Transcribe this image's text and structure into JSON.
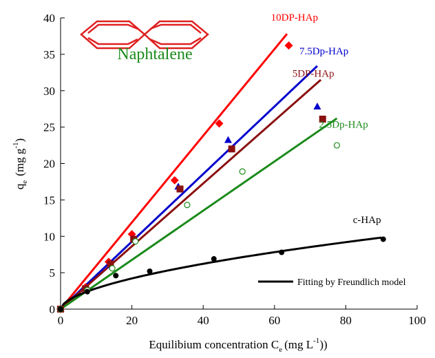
{
  "chart_data": {
    "type": "scatter",
    "x_axis": {
      "label_main": "Equilibium concentration C",
      "label_sub": "e",
      "label_tail": "(mg L",
      "label_sup": "-1",
      "label_end": "))",
      "range": [
        0,
        100
      ],
      "ticks": [
        0,
        20,
        40,
        60,
        80,
        100
      ],
      "tick_labels": [
        "0",
        "20",
        "40",
        "60",
        "80",
        "100"
      ]
    },
    "y_axis": {
      "label_main": "q",
      "label_sub": "e",
      "label_tail": "(mg g",
      "label_sup": "-1",
      "label_end": ")",
      "range": [
        0,
        40
      ],
      "ticks": [
        0,
        5,
        10,
        15,
        20,
        25,
        30,
        35,
        40
      ],
      "tick_labels": [
        "0",
        "5",
        "10",
        "15",
        "20",
        "25",
        "30",
        "35",
        "40"
      ]
    },
    "grid": false,
    "series": [
      {
        "name": "10DP-HAp",
        "color": "#ff0000",
        "marker": "diamond",
        "points": [
          [
            0,
            0
          ],
          [
            7,
            3
          ],
          [
            13.5,
            6.5
          ],
          [
            20,
            10.3
          ],
          [
            32,
            17.7
          ],
          [
            44.5,
            25.5
          ],
          [
            64,
            36.2
          ]
        ],
        "fit_line": [
          [
            0,
            0
          ],
          [
            63.5,
            37.8
          ]
        ]
      },
      {
        "name": "7.5Dp-HAp",
        "color": "#0000cc",
        "marker": "triangle",
        "points": [
          [
            0,
            0
          ],
          [
            7,
            2.8
          ],
          [
            14,
            6
          ],
          [
            20.5,
            9.6
          ],
          [
            33,
            16.8
          ],
          [
            47,
            23.2
          ],
          [
            72,
            27.8
          ]
        ],
        "fit_line": [
          [
            0,
            0
          ],
          [
            72,
            33.4
          ]
        ]
      },
      {
        "name": "5DP-HAp",
        "color": "#8b1010",
        "marker": "square",
        "points": [
          [
            0,
            0
          ],
          [
            7,
            2.8
          ],
          [
            14,
            6.2
          ],
          [
            20.5,
            9.6
          ],
          [
            33.5,
            16.5
          ],
          [
            48,
            22
          ],
          [
            73.5,
            26.1
          ]
        ],
        "fit_line": [
          [
            0,
            0
          ],
          [
            73,
            31.5
          ]
        ]
      },
      {
        "name": "2.5Dp-HAp",
        "color": "#1a8a1a",
        "marker": "circle-open",
        "points": [
          [
            0,
            0
          ],
          [
            7.5,
            2.6
          ],
          [
            14.5,
            5.6
          ],
          [
            21,
            9.3
          ],
          [
            35.5,
            14.3
          ],
          [
            51,
            18.9
          ],
          [
            77.5,
            22.5
          ]
        ],
        "fit_line": [
          [
            0,
            0
          ],
          [
            77.5,
            26.2
          ]
        ]
      },
      {
        "name": "c-HAp",
        "color": "#000000",
        "marker": "circle-filled",
        "points": [
          [
            0,
            0
          ],
          [
            7.5,
            2.4
          ],
          [
            15.5,
            4.6
          ],
          [
            25,
            5.2
          ],
          [
            43,
            6.9
          ],
          [
            62,
            7.8
          ],
          [
            90.5,
            9.6
          ]
        ],
        "fit_curve": {
          "model": "Freundlich",
          "K": 0.78,
          "n_inverse": 0.563,
          "x_range": [
            0,
            90
          ]
        }
      }
    ],
    "legend": {
      "position": "bottom-right",
      "entries": [
        {
          "label": "Fitting by Freundlich model",
          "style": "black line"
        }
      ]
    },
    "inset": {
      "text": "Naphtalene",
      "text_color": "#1a8a1a",
      "icon": "naphthalene-structure-icon",
      "icon_color": "#e02020"
    }
  }
}
